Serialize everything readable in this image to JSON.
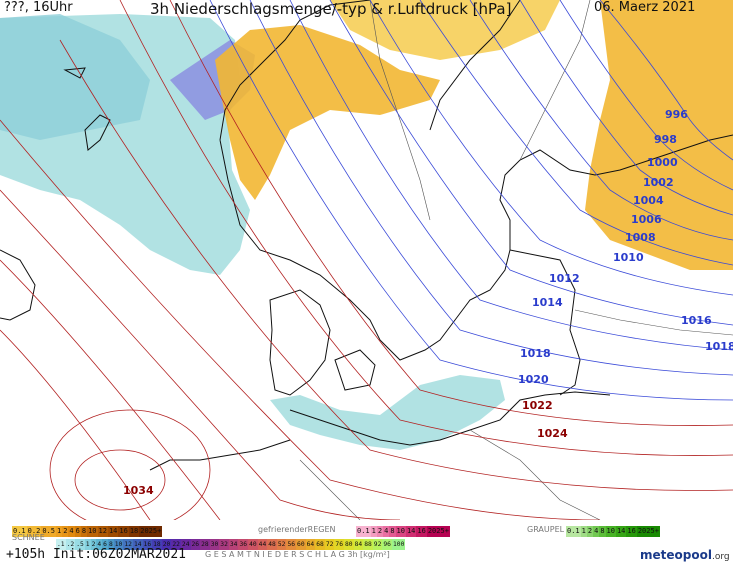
{
  "header": {
    "left": "???, 16Uhr",
    "title": "3h Niederschlagsmenge/-typ & r.Luftdruck [hPa]",
    "date": "06. Maerz 2021"
  },
  "isobars": [
    {
      "label": "996",
      "color": "#2a3ccc"
    },
    {
      "label": "998",
      "color": "#2a3ccc"
    },
    {
      "label": "1000",
      "color": "#2a3ccc"
    },
    {
      "label": "1002",
      "color": "#2a3ccc"
    },
    {
      "label": "1004",
      "color": "#2a3ccc"
    },
    {
      "label": "1006",
      "color": "#2a3ccc"
    },
    {
      "label": "1008",
      "color": "#2a3ccc"
    },
    {
      "label": "1010",
      "color": "#2a3ccc"
    },
    {
      "label": "1012",
      "color": "#2a3ccc"
    },
    {
      "label": "1014",
      "color": "#2a3ccc"
    },
    {
      "label": "1016",
      "color": "#2a3ccc"
    },
    {
      "label": "1018",
      "color": "#2a3ccc"
    },
    {
      "label": "1018",
      "color": "#2a3ccc"
    },
    {
      "label": "1020",
      "color": "#2a3ccc"
    },
    {
      "label": "1022",
      "color": "#8b0000"
    },
    {
      "label": "1024",
      "color": "#8b0000"
    },
    {
      "label": "1034",
      "color": "#8b0000"
    }
  ],
  "legend": {
    "rain_scale": [
      "0.1",
      "0.2",
      "0.5",
      "1",
      "2",
      "4",
      "6",
      "8",
      "10",
      "12",
      "14",
      "16",
      "18",
      "2025+"
    ],
    "rain_colors": [
      "#f5c842",
      "#f2b935",
      "#efaa2a",
      "#eca020",
      "#e89618",
      "#e08a10",
      "#d47e0c",
      "#c87008",
      "#bb6406",
      "#ad5804",
      "#9e4c02",
      "#8f4001",
      "#7f3400",
      "#6f2a00"
    ],
    "freezing_rain_title": "gefrierenderREGEN",
    "freezing_rain_scale": [
      "0.1",
      "1",
      "2",
      "4",
      "8",
      "10",
      "14",
      "16",
      "2025+"
    ],
    "freezing_rain_colors": [
      "#f7b2cf",
      "#f39cc0",
      "#ee86b1",
      "#e970a2",
      "#e25a92",
      "#da4482",
      "#d02e72",
      "#c41862",
      "#b60252"
    ],
    "graupel_title": "GRAUPEL",
    "graupel_scale": [
      "0.1",
      "1",
      "2",
      "4",
      "8",
      "10",
      "14",
      "16",
      "2025+"
    ],
    "graupel_colors": [
      "#b7e6a0",
      "#a0dc86",
      "#89d26c",
      "#72c852",
      "#5cbd3a",
      "#48b226",
      "#36a516",
      "#26980a",
      "#188a02"
    ],
    "snow_title": "SCHNEE",
    "snow_scale": [
      ".1",
      ".2",
      ".5",
      "1",
      "2",
      "4",
      "6",
      "8",
      "10",
      "12",
      "14",
      "16",
      "18",
      "20",
      "22",
      "24",
      "26",
      "28",
      "30",
      "32",
      "34",
      "36",
      "40",
      "44",
      "48",
      "52",
      "56",
      "60",
      "64",
      "68",
      "72",
      "76",
      "80",
      "84",
      "88",
      "92",
      "96",
      "100"
    ],
    "snow_colors": [
      "#c6f0f0",
      "#aee6ea",
      "#98dce4",
      "#84d0de",
      "#72c4d8",
      "#60b6d2",
      "#52a8cc",
      "#4a98c8",
      "#4686c4",
      "#4474c0",
      "#4262bc",
      "#4250b8",
      "#443eb4",
      "#4a2eb0",
      "#5a2aa8",
      "#6a28a0",
      "#7a2a98",
      "#8a2e90",
      "#9a3488",
      "#aa3a80",
      "#b84278",
      "#c44a6e",
      "#ce5464",
      "#d6605a",
      "#dc6e50",
      "#e07c46",
      "#e48c3c",
      "#e69c32",
      "#e8ac2a",
      "#e8bc24",
      "#e6ca22",
      "#e2d626",
      "#dce02e",
      "#d2e83a",
      "#c6ee4a",
      "#b8f25e",
      "#aaf474",
      "#9cf48c"
    ],
    "total_title": "G E S A M T N I E D E R S C H L A G  3h  [kg/m²]"
  },
  "footer": {
    "init": "+105h  Init:06Z02MAR2021",
    "brand": "meteopool",
    "brand_suffix": ".org"
  }
}
